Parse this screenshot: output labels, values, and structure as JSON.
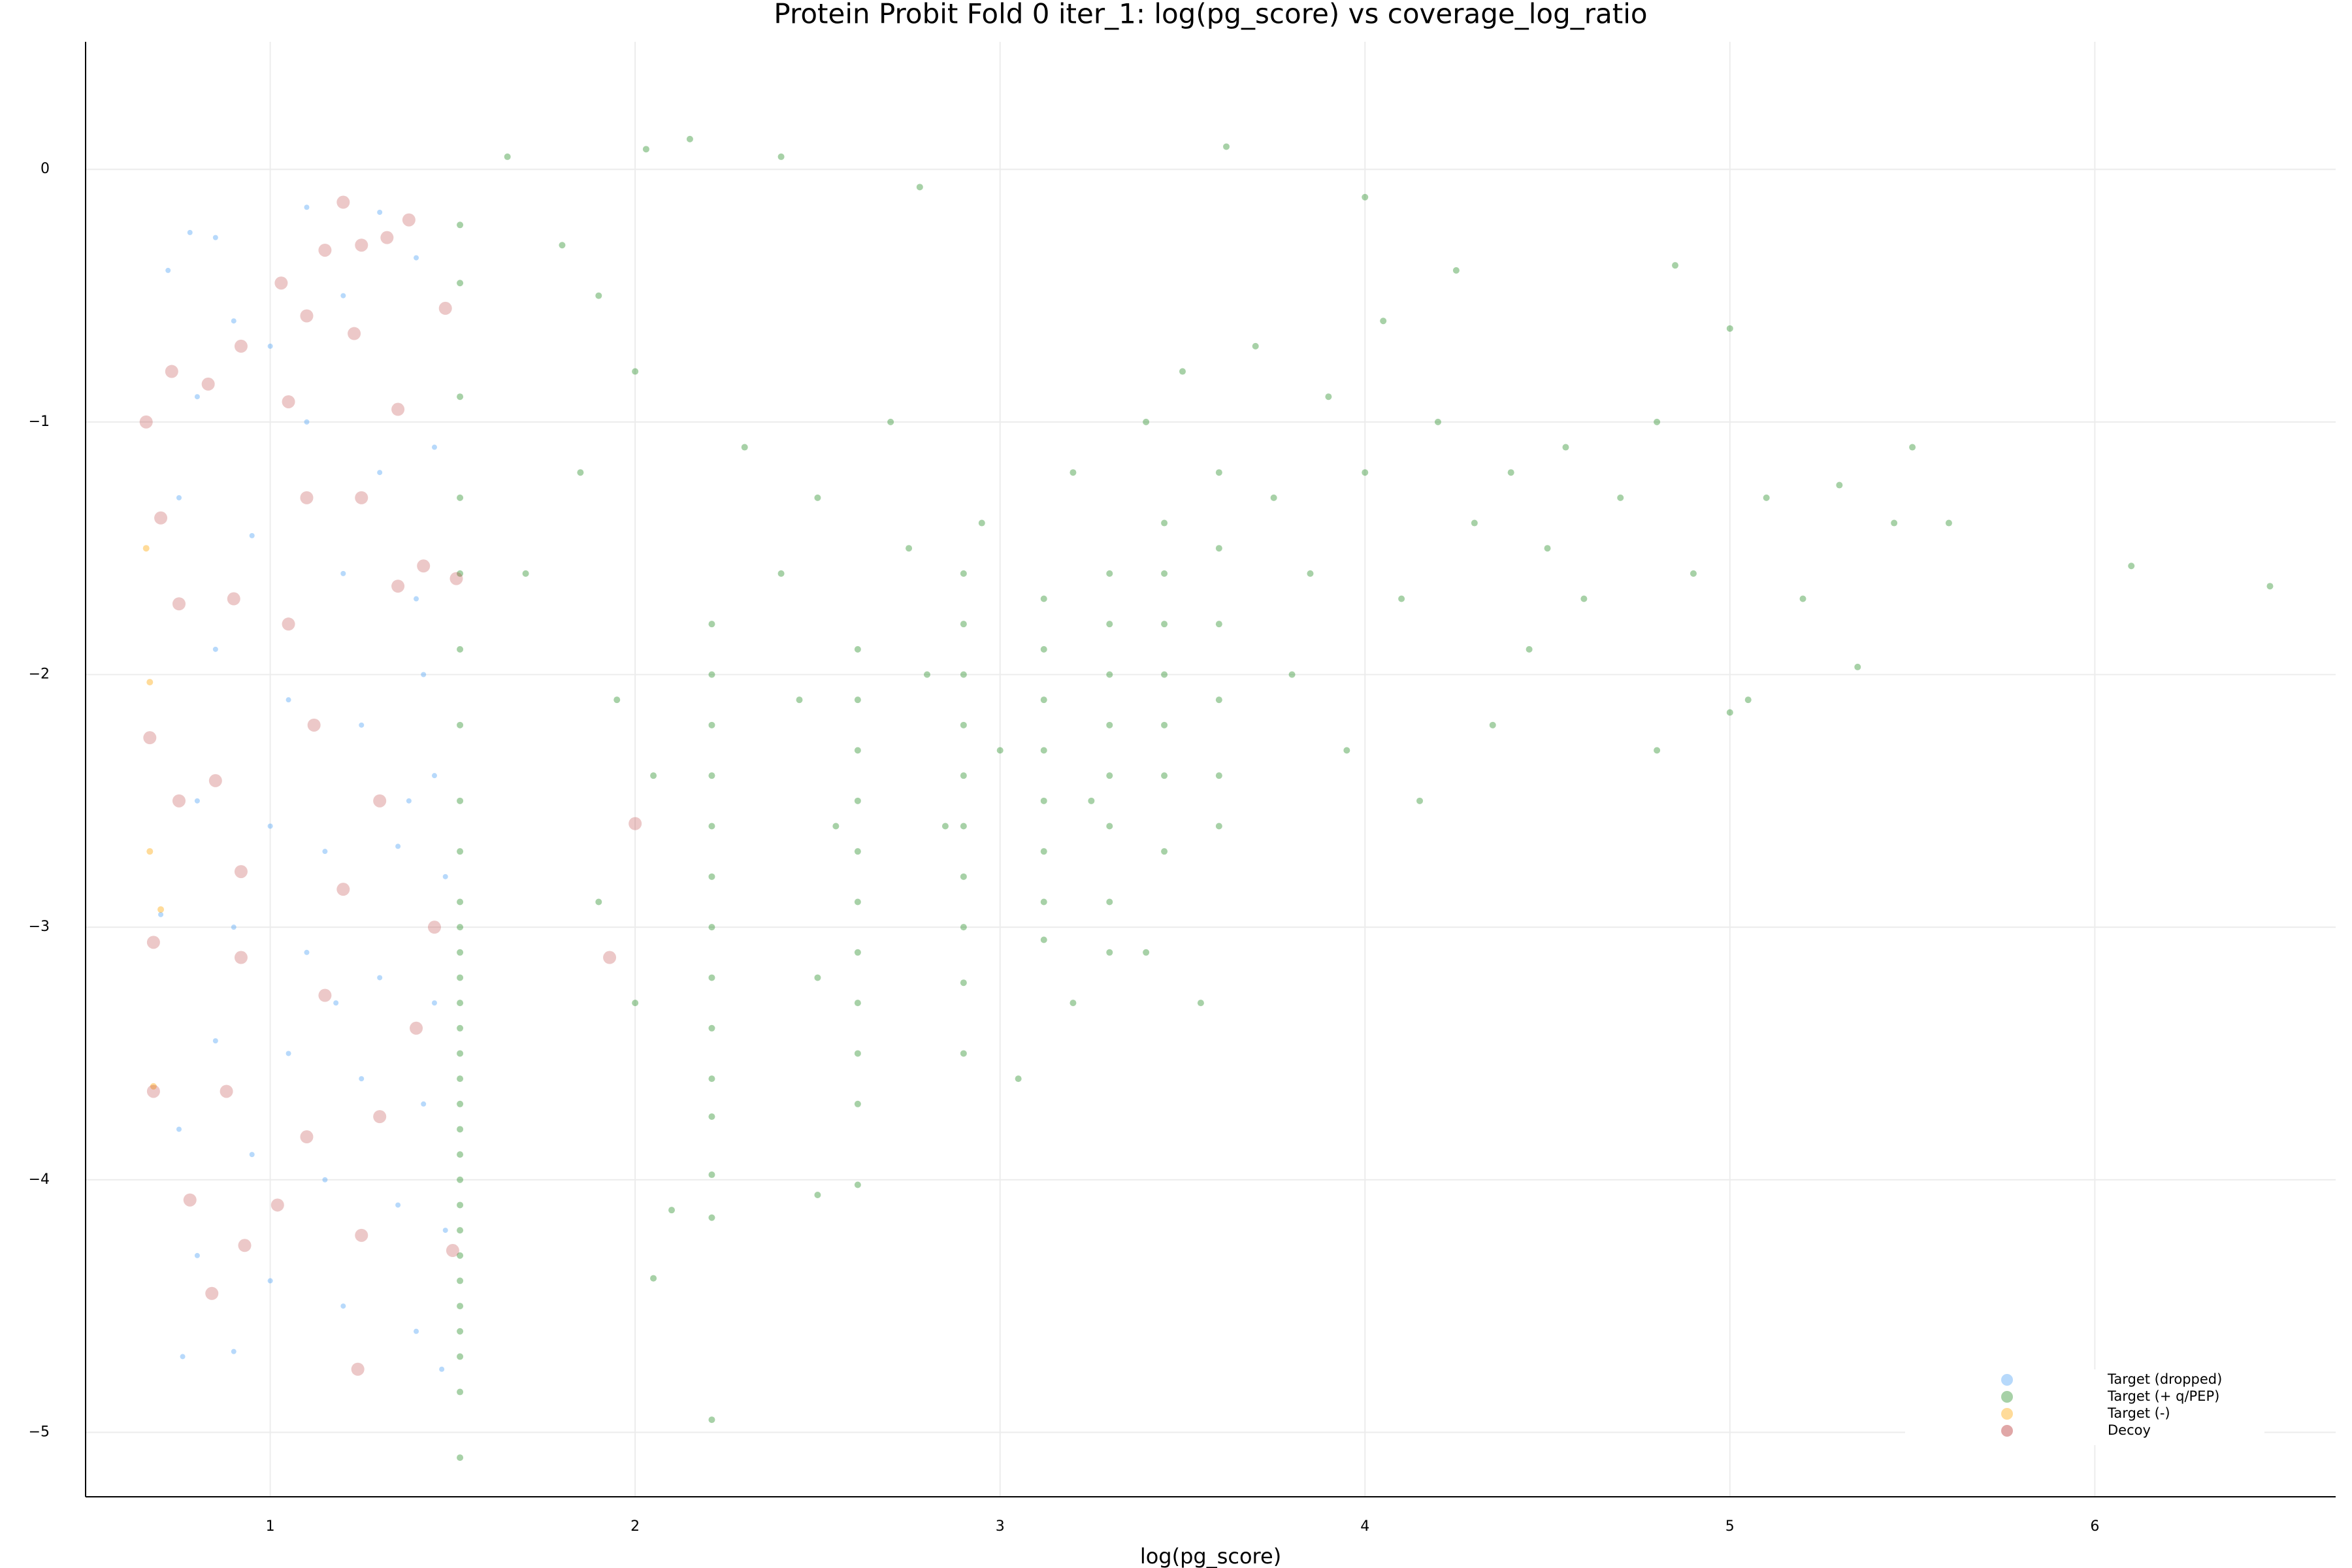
{
  "chart_data": {
    "type": "scatter",
    "title": "Protein Probit Fold 0 iter_1: log(pg_score) vs coverage_log_ratio",
    "x_label": "log(pg_score)",
    "xlim": [
      0.494,
      6.66
    ],
    "ylim": [
      -5.255,
      0.505
    ],
    "xticks": [
      1,
      2,
      3,
      4,
      5,
      6
    ],
    "yticks": [
      {
        "value": 0,
        "label": "0"
      },
      {
        "value": -1,
        "label": "−1"
      },
      {
        "value": -2,
        "label": "−2"
      },
      {
        "value": -3,
        "label": "−3"
      },
      {
        "value": -4,
        "label": "−4"
      },
      {
        "value": -5,
        "label": "−5"
      }
    ],
    "grid": true,
    "legend": "lower right",
    "series": [
      {
        "name": "Target (dropped)",
        "color": "#4a9ff5",
        "marker_size": 4,
        "x": [
          0.78,
          0.85,
          1.1,
          1.3,
          0.72,
          0.9,
          1.0,
          1.2,
          1.4,
          0.8,
          1.1,
          1.3,
          1.45,
          0.75,
          0.95,
          1.2,
          1.4,
          0.85,
          1.05,
          1.25,
          1.45,
          0.8,
          1.0,
          1.15,
          1.35,
          1.48,
          0.7,
          0.9,
          1.1,
          1.3,
          1.45,
          0.85,
          1.05,
          1.25,
          1.42,
          0.75,
          0.95,
          1.15,
          1.35,
          1.48,
          0.8,
          1.0,
          1.2,
          1.4,
          0.76,
          0.9,
          1.47,
          1.38,
          1.42,
          1.18
        ],
        "values": [
          -0.25,
          -0.27,
          -0.15,
          -0.17,
          -0.4,
          -0.6,
          -0.7,
          -0.5,
          -0.35,
          -0.9,
          -1.0,
          -1.2,
          -1.1,
          -1.3,
          -1.45,
          -1.6,
          -1.7,
          -1.9,
          -2.1,
          -2.2,
          -2.4,
          -2.5,
          -2.6,
          -2.7,
          -2.68,
          -2.8,
          -2.95,
          -3.0,
          -3.1,
          -3.2,
          -3.3,
          -3.45,
          -3.5,
          -3.6,
          -3.7,
          -3.8,
          -3.9,
          -4.0,
          -4.1,
          -4.2,
          -4.3,
          -4.4,
          -4.5,
          -4.6,
          -4.7,
          -4.68,
          -4.75,
          -2.5,
          -2.0,
          -3.3
        ]
      },
      {
        "name": "Target (+ q/PEP)",
        "color": "#228b22",
        "marker_size": 5,
        "x": [
          1.52,
          1.52,
          1.52,
          1.52,
          1.52,
          1.52,
          1.52,
          1.52,
          1.52,
          1.52,
          1.52,
          1.52,
          1.52,
          1.52,
          1.52,
          1.52,
          1.52,
          1.52,
          1.52,
          1.52,
          1.52,
          1.52,
          1.52,
          1.52,
          1.52,
          1.52,
          1.52,
          1.52,
          1.52,
          1.52,
          2.21,
          2.21,
          2.21,
          2.21,
          2.21,
          2.21,
          2.21,
          2.21,
          2.21,
          2.21,
          2.21,
          2.21,
          2.21,
          2.21,
          2.61,
          2.61,
          2.61,
          2.61,
          2.61,
          2.61,
          2.61,
          2.61,
          2.61,
          2.61,
          2.61,
          2.9,
          2.9,
          2.9,
          2.9,
          2.9,
          2.9,
          2.9,
          2.9,
          2.9,
          3.12,
          3.12,
          3.12,
          3.12,
          3.12,
          3.12,
          3.12,
          3.12,
          3.3,
          3.3,
          3.3,
          3.3,
          3.3,
          3.3,
          3.3,
          3.3,
          3.45,
          3.45,
          3.45,
          3.45,
          3.45,
          3.45,
          3.45,
          3.6,
          3.6,
          3.6,
          3.6,
          3.6,
          3.6,
          1.65,
          2.03,
          2.15,
          2.4,
          2.78,
          3.62,
          4.0,
          1.8,
          1.9,
          2.0,
          1.85,
          1.7,
          1.95,
          2.05,
          1.9,
          2.0,
          2.1,
          2.05,
          2.3,
          2.4,
          2.5,
          2.45,
          2.55,
          2.5,
          2.5,
          2.7,
          2.75,
          2.8,
          2.85,
          2.95,
          3.0,
          3.05,
          3.2,
          3.25,
          3.4,
          3.5,
          3.55,
          3.7,
          3.75,
          3.8,
          3.85,
          3.9,
          3.95,
          4.0,
          4.05,
          4.1,
          4.15,
          4.2,
          4.25,
          4.3,
          4.35,
          4.4,
          4.45,
          4.5,
          4.55,
          4.6,
          4.7,
          4.8,
          4.85,
          4.9,
          5.0,
          5.05,
          5.1,
          5.2,
          5.3,
          5.35,
          5.45,
          5.5,
          5.6,
          6.1,
          6.48,
          5.0,
          4.8,
          3.4,
          3.2,
          2.9
        ],
        "values": [
          -0.22,
          -0.45,
          -0.9,
          -1.3,
          -1.6,
          -1.9,
          -2.2,
          -2.5,
          -2.7,
          -2.9,
          -3.0,
          -3.1,
          -3.2,
          -3.3,
          -3.4,
          -3.5,
          -3.6,
          -3.7,
          -3.8,
          -3.9,
          -4.0,
          -4.1,
          -4.2,
          -4.3,
          -4.4,
          -4.5,
          -4.6,
          -4.7,
          -4.84,
          -5.1,
          -1.8,
          -2.0,
          -2.2,
          -2.4,
          -2.6,
          -2.8,
          -3.0,
          -3.2,
          -3.4,
          -3.6,
          -3.75,
          -3.98,
          -4.15,
          -4.95,
          -1.9,
          -2.1,
          -2.3,
          -2.5,
          -2.7,
          -2.9,
          -3.1,
          -3.3,
          -3.5,
          -3.7,
          -4.02,
          -1.6,
          -1.8,
          -2.0,
          -2.2,
          -2.4,
          -2.6,
          -2.8,
          -3.0,
          -3.22,
          -1.7,
          -1.9,
          -2.1,
          -2.3,
          -2.5,
          -2.7,
          -2.9,
          -3.05,
          -1.6,
          -1.8,
          -2.0,
          -2.2,
          -2.4,
          -2.6,
          -2.9,
          -3.1,
          -1.4,
          -1.6,
          -1.8,
          -2.0,
          -2.2,
          -2.4,
          -2.7,
          -1.2,
          -1.5,
          -1.8,
          -2.1,
          -2.4,
          -2.6,
          0.05,
          0.08,
          0.12,
          0.05,
          -0.07,
          0.09,
          -0.11,
          -0.3,
          -0.5,
          -0.8,
          -1.2,
          -1.6,
          -2.1,
          -2.4,
          -2.9,
          -3.3,
          -4.12,
          -4.39,
          -1.1,
          -1.6,
          -1.3,
          -2.1,
          -2.6,
          -3.2,
          -4.06,
          -1.0,
          -1.5,
          -2.0,
          -2.6,
          -1.4,
          -2.3,
          -3.6,
          -1.2,
          -2.5,
          -1.0,
          -0.8,
          -3.3,
          -0.7,
          -1.3,
          -2.0,
          -1.6,
          -0.9,
          -2.3,
          -1.2,
          -0.6,
          -1.7,
          -2.5,
          -1.0,
          -0.4,
          -1.4,
          -2.2,
          -1.2,
          -1.9,
          -1.5,
          -1.1,
          -1.7,
          -1.3,
          -1.0,
          -0.38,
          -1.6,
          -0.63,
          -2.1,
          -1.3,
          -1.7,
          -1.25,
          -1.97,
          -1.4,
          -1.1,
          -1.4,
          -1.57,
          -1.65,
          -2.15,
          -2.3,
          -3.1,
          -3.3,
          -3.5
        ]
      },
      {
        "name": "Target (-)",
        "color": "#ffa500",
        "marker_size": 5,
        "x": [
          0.66,
          0.67,
          0.67,
          0.7,
          0.68
        ],
        "values": [
          -1.5,
          -2.03,
          -2.7,
          -2.93,
          -3.63
        ]
      },
      {
        "name": "Decoy",
        "color": "#b22222",
        "marker_size": 10,
        "x": [
          0.66,
          0.7,
          0.73,
          0.83,
          0.92,
          1.03,
          1.2,
          1.15,
          1.25,
          1.32,
          1.38,
          1.1,
          1.23,
          1.05,
          1.35,
          1.48,
          1.1,
          1.25,
          1.42,
          0.75,
          0.9,
          1.05,
          1.35,
          0.67,
          0.85,
          1.12,
          1.3,
          0.75,
          0.92,
          1.2,
          1.45,
          0.68,
          0.92,
          1.15,
          1.4,
          0.68,
          0.88,
          1.1,
          1.3,
          0.78,
          1.02,
          1.25,
          0.93,
          0.84,
          1.24,
          1.5,
          1.51,
          2.0,
          1.93
        ],
        "values": [
          -1.0,
          -1.38,
          -0.8,
          -0.85,
          -0.7,
          -0.45,
          -0.13,
          -0.32,
          -0.3,
          -0.27,
          -0.2,
          -0.58,
          -0.65,
          -0.92,
          -0.95,
          -0.55,
          -1.3,
          -1.3,
          -1.57,
          -1.72,
          -1.7,
          -1.8,
          -1.65,
          -2.25,
          -2.42,
          -2.2,
          -2.5,
          -2.5,
          -2.78,
          -2.85,
          -3.0,
          -3.06,
          -3.12,
          -3.27,
          -3.4,
          -3.65,
          -3.65,
          -3.83,
          -3.75,
          -4.08,
          -4.1,
          -4.22,
          -4.26,
          -4.45,
          -4.75,
          -4.28,
          -1.62,
          -2.59,
          -3.12
        ]
      }
    ]
  }
}
